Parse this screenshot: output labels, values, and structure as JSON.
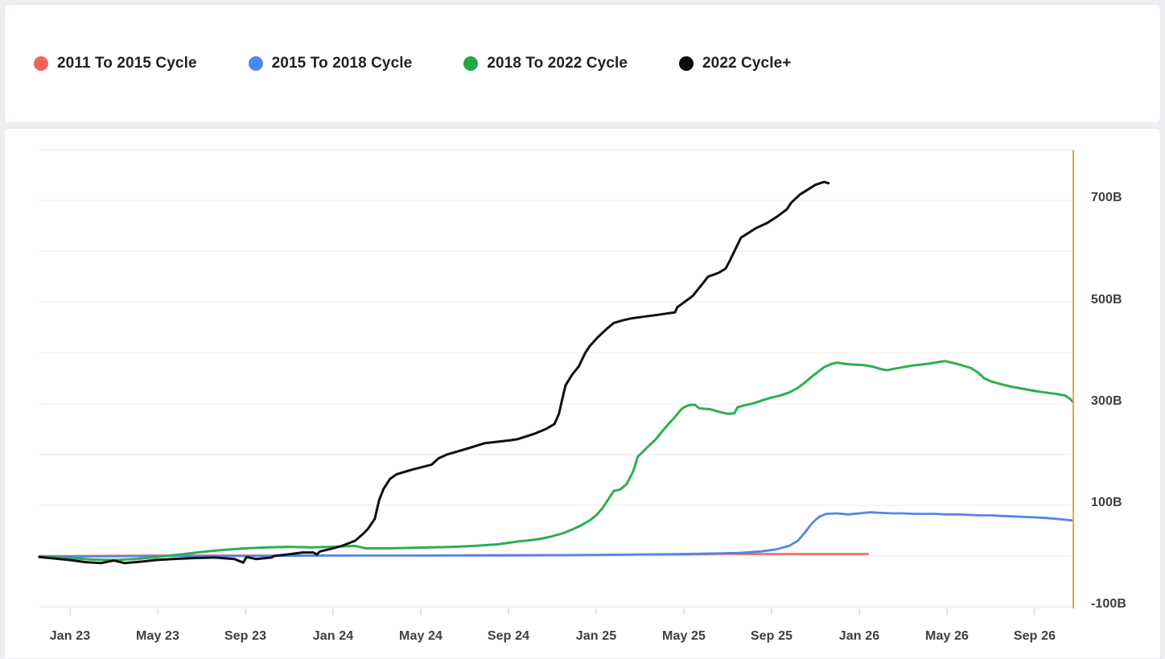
{
  "legend": {
    "items": [
      {
        "id": "cycle-2011-2015",
        "label": "2011 To 2015 Cycle",
        "color": "#f4605d"
      },
      {
        "id": "cycle-2015-2018",
        "label": "2015 To 2018 Cycle",
        "color": "#4a89f4"
      },
      {
        "id": "cycle-2018-2022",
        "label": "2018 To 2022 Cycle",
        "color": "#27a44a"
      },
      {
        "id": "cycle-2022-plus",
        "label": "2022 Cycle+",
        "color": "#0b0b0b"
      }
    ]
  },
  "colors": {
    "page_background": "#edeff3",
    "card_background": "#ffffff",
    "card_border": "#e7e9ec",
    "gridline": "#f2f2f4",
    "gridline_edge": "#e9eaec",
    "right_axis_line": "#f2a43a",
    "tick": "#d9dadd",
    "axis_text": "#3c4043",
    "legend_text": "#1f2124"
  },
  "chart_data": {
    "type": "line",
    "title": "",
    "xlabel": "",
    "ylabel": "",
    "unit": "B (billions of dollars)",
    "x_unit": "months since Jan 2023",
    "xlim": [
      -1.4,
      45.8
    ],
    "ylim": [
      -100,
      800
    ],
    "grid": "horizontal only, every 100B",
    "legend_position": "top",
    "y_axis_side": "right",
    "x_ticks": {
      "labels": [
        "Jan 23",
        "May 23",
        "Sep 23",
        "Jan 24",
        "May 24",
        "Sep 24",
        "Jan 25",
        "May 25",
        "Sep 25",
        "Jan 26",
        "May 26",
        "Sep 26"
      ],
      "positions": [
        0,
        4,
        8,
        12,
        16,
        20,
        24,
        28,
        32,
        36,
        40,
        44
      ]
    },
    "y_ticks": {
      "labels": [
        "700B",
        "500B",
        "300B",
        "100B",
        "-100B"
      ],
      "values": [
        700,
        500,
        300,
        100,
        -100
      ]
    },
    "y_gridline_values": [
      -100,
      0,
      100,
      200,
      300,
      400,
      500,
      600,
      700,
      800
    ],
    "series": [
      {
        "name": "2011 To 2015 Cycle",
        "color": "#f4605d",
        "width": 2.5,
        "points": [
          [
            -1.4,
            0
          ],
          [
            0,
            0
          ],
          [
            4,
            1
          ],
          [
            8,
            1
          ],
          [
            12,
            1
          ],
          [
            16,
            1
          ],
          [
            20,
            2
          ],
          [
            24,
            2
          ],
          [
            26,
            3
          ],
          [
            28,
            3
          ],
          [
            30,
            4
          ],
          [
            32,
            4
          ],
          [
            34,
            4
          ],
          [
            36,
            4
          ],
          [
            36.4,
            4
          ]
        ]
      },
      {
        "name": "2015 To 2018 Cycle",
        "color": "#5585ec",
        "width": 2.8,
        "points": [
          [
            -1.4,
            -1
          ],
          [
            0,
            -1
          ],
          [
            4,
            0
          ],
          [
            8,
            0
          ],
          [
            12,
            1
          ],
          [
            16,
            1
          ],
          [
            20,
            1
          ],
          [
            24,
            2
          ],
          [
            26,
            3
          ],
          [
            28,
            4
          ],
          [
            29.5,
            5
          ],
          [
            30.5,
            6
          ],
          [
            31.5,
            9
          ],
          [
            32.2,
            13
          ],
          [
            32.8,
            20
          ],
          [
            33.2,
            30
          ],
          [
            33.5,
            45
          ],
          [
            33.8,
            62
          ],
          [
            34,
            71
          ],
          [
            34.2,
            78
          ],
          [
            34.5,
            83
          ],
          [
            35,
            84
          ],
          [
            35.5,
            82
          ],
          [
            36,
            84
          ],
          [
            36.5,
            86
          ],
          [
            37,
            85
          ],
          [
            37.5,
            84
          ],
          [
            38,
            84
          ],
          [
            38.5,
            83
          ],
          [
            39,
            83
          ],
          [
            39.5,
            83
          ],
          [
            40,
            82
          ],
          [
            40.5,
            82
          ],
          [
            41,
            81
          ],
          [
            41.5,
            80
          ],
          [
            42,
            80
          ],
          [
            42.5,
            79
          ],
          [
            43,
            78
          ],
          [
            43.5,
            77
          ],
          [
            44,
            76
          ],
          [
            44.5,
            75
          ],
          [
            45,
            73
          ],
          [
            45.5,
            71
          ],
          [
            45.7,
            70
          ]
        ]
      },
      {
        "name": "2018 To 2022 Cycle",
        "color": "#2daf52",
        "width": 3,
        "points": [
          [
            -1.4,
            -2
          ],
          [
            0,
            -4
          ],
          [
            1,
            -7
          ],
          [
            2,
            -8
          ],
          [
            3,
            -6
          ],
          [
            4,
            -2
          ],
          [
            5,
            3
          ],
          [
            6,
            8
          ],
          [
            7,
            12
          ],
          [
            8,
            15
          ],
          [
            9,
            17
          ],
          [
            10,
            18
          ],
          [
            11,
            17
          ],
          [
            12,
            18
          ],
          [
            13,
            20
          ],
          [
            13.5,
            15
          ],
          [
            14.5,
            15
          ],
          [
            15.5,
            16
          ],
          [
            16.5,
            17
          ],
          [
            17.5,
            18
          ],
          [
            18.5,
            20
          ],
          [
            19.5,
            23
          ],
          [
            20,
            26
          ],
          [
            20.5,
            29
          ],
          [
            21,
            31
          ],
          [
            21.5,
            34
          ],
          [
            22,
            39
          ],
          [
            22.5,
            45
          ],
          [
            22.9,
            52
          ],
          [
            23.3,
            60
          ],
          [
            23.7,
            70
          ],
          [
            24,
            80
          ],
          [
            24.3,
            95
          ],
          [
            24.6,
            115
          ],
          [
            24.8,
            128
          ],
          [
            25.1,
            131
          ],
          [
            25.4,
            142
          ],
          [
            25.7,
            168
          ],
          [
            25.9,
            196
          ],
          [
            26.1,
            204
          ],
          [
            26.4,
            217
          ],
          [
            26.7,
            229
          ],
          [
            27,
            245
          ],
          [
            27.3,
            260
          ],
          [
            27.6,
            274
          ],
          [
            27.9,
            290
          ],
          [
            28.2,
            297
          ],
          [
            28.5,
            298
          ],
          [
            28.7,
            291
          ],
          [
            29.2,
            289
          ],
          [
            29.6,
            284
          ],
          [
            30,
            280
          ],
          [
            30.3,
            281
          ],
          [
            30.45,
            293
          ],
          [
            30.8,
            297
          ],
          [
            31.2,
            301
          ],
          [
            31.6,
            307
          ],
          [
            32,
            312
          ],
          [
            32.4,
            316
          ],
          [
            32.8,
            322
          ],
          [
            33.2,
            331
          ],
          [
            33.5,
            341
          ],
          [
            33.8,
            352
          ],
          [
            34.1,
            362
          ],
          [
            34.4,
            372
          ],
          [
            34.7,
            378
          ],
          [
            35,
            381
          ],
          [
            35.4,
            378
          ],
          [
            35.8,
            377
          ],
          [
            36.2,
            376
          ],
          [
            36.6,
            373
          ],
          [
            37,
            368
          ],
          [
            37.3,
            366
          ],
          [
            37.6,
            369
          ],
          [
            38,
            372
          ],
          [
            38.4,
            375
          ],
          [
            38.8,
            377
          ],
          [
            39.2,
            379
          ],
          [
            39.6,
            382
          ],
          [
            39.9,
            384
          ],
          [
            40.2,
            381
          ],
          [
            40.5,
            378
          ],
          [
            40.8,
            374
          ],
          [
            41.1,
            370
          ],
          [
            41.4,
            362
          ],
          [
            41.7,
            350
          ],
          [
            42,
            344
          ],
          [
            42.5,
            338
          ],
          [
            43,
            333
          ],
          [
            43.5,
            329
          ],
          [
            44,
            325
          ],
          [
            44.5,
            322
          ],
          [
            45,
            319
          ],
          [
            45.4,
            316
          ],
          [
            45.6,
            310
          ],
          [
            45.76,
            303
          ]
        ]
      },
      {
        "name": "2022 Cycle+",
        "color": "#101010",
        "width": 3,
        "points": [
          [
            -1.4,
            -2
          ],
          [
            0,
            -8
          ],
          [
            0.7,
            -12
          ],
          [
            1.4,
            -14
          ],
          [
            2,
            -9
          ],
          [
            2.5,
            -14
          ],
          [
            3.3,
            -11
          ],
          [
            3.9,
            -8
          ],
          [
            4.7,
            -6
          ],
          [
            5.7,
            -4
          ],
          [
            6.6,
            -3
          ],
          [
            7.5,
            -6
          ],
          [
            7.9,
            -13
          ],
          [
            8.05,
            -2
          ],
          [
            8.5,
            -6
          ],
          [
            9.2,
            -3
          ],
          [
            9.3,
            0
          ],
          [
            10.1,
            4
          ],
          [
            10.6,
            7
          ],
          [
            11.1,
            7
          ],
          [
            11.25,
            3
          ],
          [
            11.4,
            9
          ],
          [
            11.9,
            14
          ],
          [
            12.4,
            20
          ],
          [
            13,
            30
          ],
          [
            13.4,
            45
          ],
          [
            13.6,
            54
          ],
          [
            13.9,
            73
          ],
          [
            14.1,
            110
          ],
          [
            14.3,
            132
          ],
          [
            14.6,
            152
          ],
          [
            14.9,
            161
          ],
          [
            15.6,
            170
          ],
          [
            16.5,
            180
          ],
          [
            16.8,
            192
          ],
          [
            17.2,
            200
          ],
          [
            18,
            210
          ],
          [
            18.9,
            222
          ],
          [
            19.5,
            225
          ],
          [
            20.1,
            228
          ],
          [
            20.4,
            230
          ],
          [
            21.2,
            241
          ],
          [
            21.7,
            250
          ],
          [
            22.1,
            260
          ],
          [
            22.3,
            280
          ],
          [
            22.4,
            299
          ],
          [
            22.6,
            336
          ],
          [
            22.9,
            357
          ],
          [
            23.2,
            373
          ],
          [
            23.5,
            400
          ],
          [
            23.7,
            413
          ],
          [
            24.1,
            432
          ],
          [
            24.5,
            448
          ],
          [
            24.8,
            459
          ],
          [
            25.2,
            464
          ],
          [
            25.6,
            468
          ],
          [
            26.1,
            471
          ],
          [
            26.8,
            475
          ],
          [
            27.6,
            480
          ],
          [
            27.7,
            490
          ],
          [
            28.4,
            512
          ],
          [
            28.9,
            539
          ],
          [
            29.1,
            550
          ],
          [
            29.6,
            558
          ],
          [
            29.9,
            566
          ],
          [
            30.1,
            582
          ],
          [
            30.6,
            627
          ],
          [
            30.9,
            635
          ],
          [
            31.3,
            646
          ],
          [
            31.8,
            656
          ],
          [
            32.3,
            670
          ],
          [
            32.7,
            683
          ],
          [
            32.9,
            696
          ],
          [
            33.3,
            712
          ],
          [
            33.7,
            723
          ],
          [
            34,
            731
          ],
          [
            34.4,
            737
          ],
          [
            34.6,
            734
          ]
        ]
      }
    ]
  }
}
